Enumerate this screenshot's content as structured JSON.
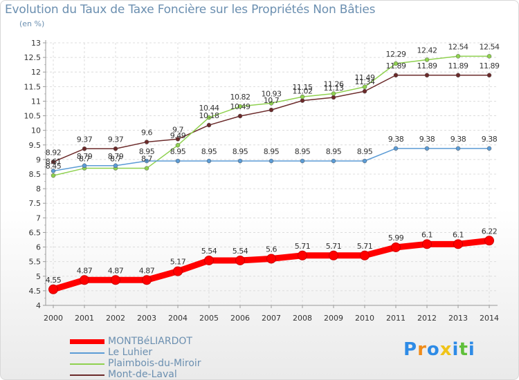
{
  "title": "Evolution du Taux de Taxe Foncière sur les Propriétés Non Bâties",
  "unit_label": "(en %)",
  "chart_data": {
    "type": "line",
    "x": [
      2000,
      2001,
      2002,
      2003,
      2004,
      2005,
      2006,
      2007,
      2008,
      2009,
      2010,
      2011,
      2012,
      2013,
      2014
    ],
    "ylim": [
      4,
      13
    ],
    "yticks": [
      4,
      4.5,
      5,
      5.5,
      6,
      6.5,
      7,
      7.5,
      8,
      8.5,
      9,
      9.5,
      10,
      10.5,
      11,
      11.5,
      12,
      12.5,
      13
    ],
    "ytick_labels": [
      "4",
      "4.5",
      "5",
      "5.5",
      "6",
      "6.5",
      "7",
      "7.5",
      "8",
      "8.5",
      "9",
      "9.5",
      "10",
      "10.5",
      "11",
      "11.5",
      "12",
      "12.5",
      "13"
    ],
    "grid": true,
    "series": [
      {
        "name": "MONTBéLIARDOT",
        "color": "#ff0000",
        "values": [
          4.55,
          4.87,
          4.87,
          4.87,
          5.17,
          5.54,
          5.54,
          5.6,
          5.71,
          5.71,
          5.71,
          5.99,
          6.1,
          6.1,
          6.22
        ],
        "labels": [
          "4.55",
          "4.87",
          "4.87",
          "4.87",
          "5.17",
          "5.54",
          "5.54",
          "5.6",
          "5.71",
          "5.71",
          "5.71",
          "5.99",
          "6.1",
          "6.1",
          "6.22"
        ]
      },
      {
        "name": "Le Luhier",
        "color": "#5b9bd5",
        "values": [
          8.61,
          8.79,
          8.79,
          8.95,
          8.95,
          8.95,
          8.95,
          8.95,
          8.95,
          8.95,
          8.95,
          9.38,
          9.38,
          9.38,
          9.38
        ],
        "labels": [
          "8.61",
          "8.79",
          "8.79",
          "8.95",
          "8.95",
          "8.95",
          "8.95",
          "8.95",
          "8.95",
          "8.95",
          "8.95",
          "9.38",
          "9.38",
          "9.38",
          "9.38"
        ]
      },
      {
        "name": "Plaimbois-du-Miroir",
        "color": "#8fd14f",
        "values": [
          8.45,
          8.7,
          8.7,
          8.7,
          9.49,
          10.44,
          10.82,
          10.93,
          11.15,
          11.26,
          11.49,
          12.29,
          12.42,
          12.54,
          12.54
        ],
        "labels": [
          "8.45",
          "8.7",
          "8.7",
          "8.7",
          "9.49",
          "10.44",
          "10.82",
          "10.93",
          "11.15",
          "11.26",
          "11.49",
          "12.29",
          "12.42",
          "12.54",
          "12.54"
        ]
      },
      {
        "name": "Mont-de-Laval",
        "color": "#6b2a2a",
        "values": [
          8.92,
          9.37,
          9.37,
          9.6,
          9.7,
          10.18,
          10.49,
          10.7,
          11.02,
          11.13,
          11.34,
          11.89,
          11.89,
          11.89,
          11.89
        ],
        "labels": [
          "8.92",
          "9.37",
          "9.37",
          "9.6",
          "9.7",
          "10.18",
          "10.49",
          "10.7",
          "11.02",
          "11.13",
          "11.34",
          "11.89",
          "11.89",
          "11.89",
          "11.89"
        ]
      }
    ]
  },
  "legend": {
    "items": [
      {
        "label": "MONTBéLIARDOT",
        "color": "#ff0000"
      },
      {
        "label": "Le Luhier",
        "color": "#5b9bd5"
      },
      {
        "label": "Plaimbois-du-Miroir",
        "color": "#8fd14f"
      },
      {
        "label": "Mont-de-Laval",
        "color": "#6b2a2a"
      }
    ]
  },
  "logo": {
    "letters": [
      "P",
      "r",
      "o",
      "x",
      "i",
      "t",
      "i"
    ],
    "colors": [
      "#2e8be6",
      "#f08c1a",
      "#2e8be6",
      "#f0c419",
      "#2e8be6",
      "#5fbf3a",
      "#2e8be6"
    ]
  }
}
